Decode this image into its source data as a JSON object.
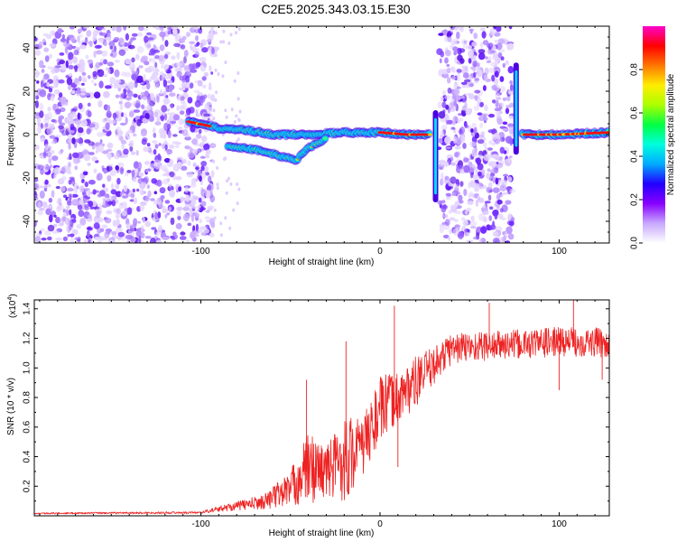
{
  "title": "C2E5.2025.343.03.15.E30",
  "chart_data": [
    {
      "type": "heatmap",
      "name": "spectrogram",
      "xlabel": "Height of straight line (km)",
      "ylabel": "Frequency (Hz)",
      "xlim": [
        -193,
        128
      ],
      "ylim": [
        -50,
        50
      ],
      "xticks": [
        -100,
        0,
        100
      ],
      "yticks": [
        -40,
        -20,
        0,
        20,
        40
      ],
      "ytick_labels": [
        "-40",
        "-20",
        "0",
        "20",
        "40"
      ],
      "colorbar": {
        "label": "Normalized spectral amplitude",
        "range": [
          0.0,
          1.0
        ],
        "ticks": [
          0.0,
          0.2,
          0.4,
          0.6,
          0.8
        ],
        "tick_labels": [
          "0.0",
          "0.2",
          "0.4",
          "0.6",
          "0.8"
        ],
        "colors": [
          "#ffffff",
          "#c8a8ff",
          "#8800ff",
          "#2200ff",
          "#00aaff",
          "#00ffdd",
          "#00ff44",
          "#aaff00",
          "#ffee00",
          "#ff7700",
          "#ff0000",
          "#ff00cc"
        ]
      },
      "noise_regions_km": [
        [
          -193,
          -93
        ],
        [
          33,
          74
        ]
      ],
      "signal_trace": [
        {
          "x": -107,
          "y": 6
        },
        {
          "x": -90,
          "y": 3
        },
        {
          "x": -75,
          "y": 2
        },
        {
          "x": -60,
          "y": 0
        },
        {
          "x": -40,
          "y": 0
        },
        {
          "x": -20,
          "y": 1
        },
        {
          "x": 0,
          "y": 1
        },
        {
          "x": 15,
          "y": 0
        },
        {
          "x": 27,
          "y": 0
        },
        {
          "x": 80,
          "y": 0
        },
        {
          "x": 100,
          "y": 0
        },
        {
          "x": 128,
          "y": 1
        }
      ],
      "secondary_trace": [
        {
          "x": -85,
          "y": -5
        },
        {
          "x": -70,
          "y": -7
        },
        {
          "x": -55,
          "y": -10
        },
        {
          "x": -47,
          "y": -12
        },
        {
          "x": -40,
          "y": -6
        },
        {
          "x": -30,
          "y": -2
        }
      ],
      "vertical_spikes": [
        {
          "x": 31,
          "ymin": -30,
          "ymax": 10
        },
        {
          "x": 76,
          "ymin": -8,
          "ymax": 32
        }
      ]
    },
    {
      "type": "line",
      "name": "snr",
      "xlabel": "Height of straight line (km)",
      "ylabel": "SNR (10 * v/v)",
      "y_multiplier": "(x10",
      "y_multiplier_exp": "4",
      "y_multiplier_close": ")",
      "xlim": [
        -193,
        128
      ],
      "ylim": [
        0,
        14600
      ],
      "xticks": [
        -100,
        0,
        100
      ],
      "yticks": [
        2000,
        4000,
        6000,
        8000,
        10000,
        12000,
        14000
      ],
      "ytick_labels": [
        "0.2",
        "0.4",
        "0.6",
        "0.8",
        "1.0",
        "1.2",
        "1.4"
      ],
      "color": "#ee2222",
      "envelope": [
        {
          "x": -193,
          "base": 150,
          "amp": 100
        },
        {
          "x": -100,
          "base": 200,
          "amp": 150
        },
        {
          "x": -85,
          "base": 500,
          "amp": 500
        },
        {
          "x": -65,
          "base": 800,
          "amp": 1000
        },
        {
          "x": -50,
          "base": 1500,
          "amp": 2500
        },
        {
          "x": -40,
          "base": 2500,
          "amp": 5000
        },
        {
          "x": -30,
          "base": 2500,
          "amp": 3500
        },
        {
          "x": -20,
          "base": 3000,
          "amp": 6000
        },
        {
          "x": -10,
          "base": 4000,
          "amp": 4000
        },
        {
          "x": 0,
          "base": 6500,
          "amp": 4500
        },
        {
          "x": 10,
          "base": 7500,
          "amp": 3500
        },
        {
          "x": 20,
          "base": 8500,
          "amp": 3500
        },
        {
          "x": 30,
          "base": 9800,
          "amp": 2500
        },
        {
          "x": 40,
          "base": 11000,
          "amp": 2200
        },
        {
          "x": 60,
          "base": 11200,
          "amp": 2000
        },
        {
          "x": 80,
          "base": 11300,
          "amp": 2000
        },
        {
          "x": 100,
          "base": 11500,
          "amp": 2000
        },
        {
          "x": 128,
          "base": 11400,
          "amp": 2000
        }
      ],
      "spikes": [
        {
          "x": -41,
          "y": 9200
        },
        {
          "x": -19,
          "y": 11800
        },
        {
          "x": 8,
          "y": 14200
        },
        {
          "x": 61,
          "y": 14400
        },
        {
          "x": 108,
          "y": 14600
        },
        {
          "x": 124,
          "y": 9200
        },
        {
          "x": 10,
          "y": 3300
        },
        {
          "x": 100,
          "y": 8500
        }
      ]
    }
  ]
}
